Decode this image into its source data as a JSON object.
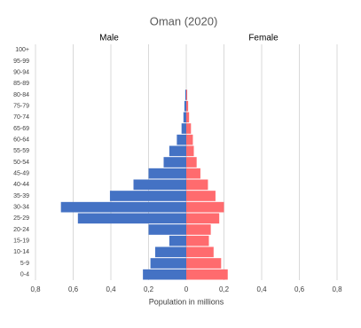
{
  "chart_data": {
    "type": "pyramid",
    "title": "Oman (2020)",
    "x_label": "Population in millions",
    "categories": [
      "0-4",
      "5-9",
      "10-14",
      "15-19",
      "20-24",
      "25-29",
      "30-34",
      "35-39",
      "40-44",
      "45-49",
      "50-54",
      "55-59",
      "60-64",
      "65-69",
      "70-74",
      "75-79",
      "80-84",
      "85-89",
      "90-94",
      "95-99",
      "100+"
    ],
    "series": [
      {
        "name": "Male",
        "color": "#4472c4",
        "values": [
          -0.23,
          -0.19,
          -0.165,
          -0.09,
          -0.2,
          -0.575,
          -0.665,
          -0.405,
          -0.28,
          -0.2,
          -0.12,
          -0.09,
          -0.05,
          -0.025,
          -0.015,
          -0.01,
          -0.005,
          0,
          0,
          0,
          0
        ]
      },
      {
        "name": "Female",
        "color": "#ff6b6e",
        "values": [
          0.22,
          0.185,
          0.145,
          0.12,
          0.13,
          0.175,
          0.2,
          0.155,
          0.115,
          0.075,
          0.055,
          0.04,
          0.035,
          0.025,
          0.015,
          0.01,
          0.005,
          0,
          0,
          0,
          0
        ]
      }
    ],
    "xlim": [
      -0.8,
      0.8
    ],
    "xticks": [
      {
        "value": -0.8,
        "label": "0,8"
      },
      {
        "value": -0.6,
        "label": "0,6"
      },
      {
        "value": -0.4,
        "label": "0,4"
      },
      {
        "value": -0.2,
        "label": "0,2"
      },
      0,
      {
        "value": 0.2,
        "label": "0,2"
      },
      {
        "value": 0.4,
        "label": "0,4"
      },
      {
        "value": 0.6,
        "label": "0,6"
      },
      {
        "value": 0.8,
        "label": "0,8"
      }
    ],
    "grid": true
  }
}
